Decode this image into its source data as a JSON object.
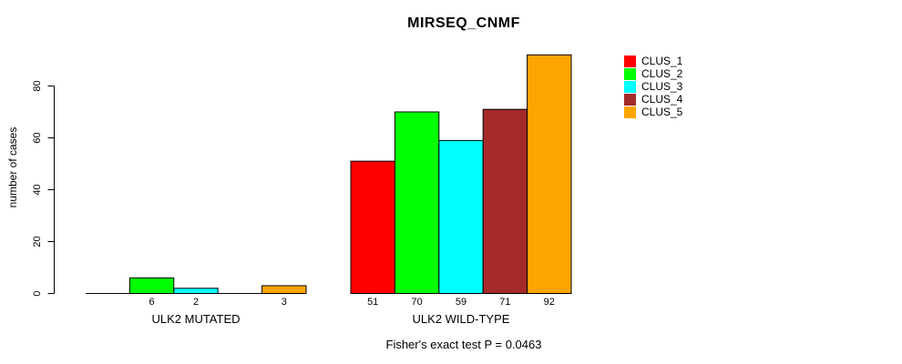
{
  "chart_data": {
    "type": "bar",
    "title": "MIRSEQ_CNMF",
    "ylabel": "number of cases",
    "xlabel": "",
    "ylim": [
      0,
      92
    ],
    "yticks": [
      0,
      20,
      40,
      60,
      80
    ],
    "grid": false,
    "legend_position": "right",
    "legend": [
      {
        "label": "CLUS_1",
        "color": "#FF0000"
      },
      {
        "label": "CLUS_2",
        "color": "#00FF00"
      },
      {
        "label": "CLUS_3",
        "color": "#00FFFF"
      },
      {
        "label": "CLUS_4",
        "color": "#A52A2A"
      },
      {
        "label": "CLUS_5",
        "color": "#FFA500"
      }
    ],
    "groups": [
      {
        "label": "ULK2 MUTATED",
        "values": [
          0,
          6,
          2,
          0,
          3
        ],
        "bar_labels": [
          "",
          "6",
          "2",
          "",
          "3"
        ]
      },
      {
        "label": "ULK2 WILD-TYPE",
        "values": [
          51,
          70,
          59,
          71,
          92
        ],
        "bar_labels": [
          "51",
          "70",
          "59",
          "71",
          "92"
        ]
      }
    ],
    "annotation": "Fisher's exact test P = 0.0463"
  }
}
